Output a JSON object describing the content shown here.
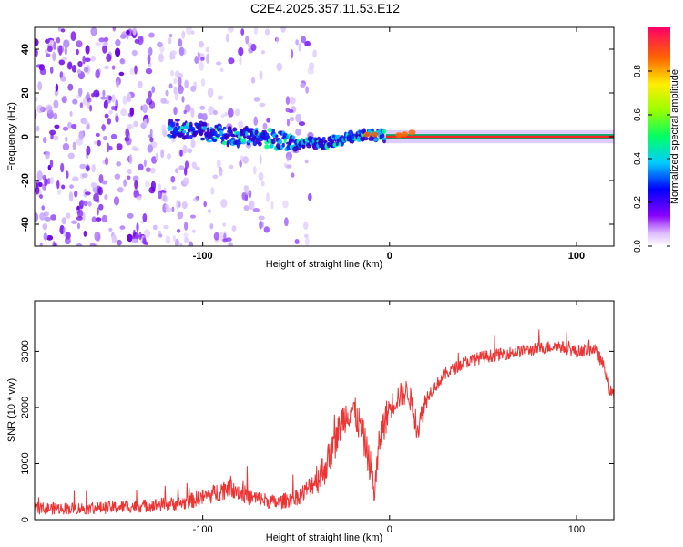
{
  "figure": {
    "title": "C2E4.2025.357.11.53.E12"
  },
  "chart_data": [
    {
      "type": "heatmap",
      "title": "C2E4.2025.357.11.53.E12",
      "xlabel": "Height of straight line (km)",
      "ylabel": "Frequency (Hz)",
      "xlim": [
        -190,
        120
      ],
      "ylim": [
        -50,
        50
      ],
      "xticks": [
        -100,
        0,
        100
      ],
      "yticks": [
        -40,
        -20,
        0,
        20,
        40
      ],
      "x_tick_labels": [
        "-100",
        "0",
        "100"
      ],
      "y_tick_labels": [
        "-40",
        "-20",
        "0",
        "20",
        "40"
      ],
      "ridge": {
        "x": [
          -115,
          -100,
          -85,
          -70,
          -50,
          -35,
          -20,
          -10,
          0,
          10,
          20,
          40,
          80,
          120
        ],
        "y": [
          4,
          2,
          0,
          0,
          -3,
          -3,
          0,
          1,
          0,
          1,
          0,
          0,
          0,
          0
        ]
      },
      "colorbar": {
        "label": "Normalized spectral amplitude",
        "range": [
          0.0,
          1.0
        ],
        "ticks": [
          0.0,
          0.2,
          0.4,
          0.6,
          0.8
        ],
        "tick_labels": [
          "0.0",
          "0.2",
          "0.4",
          "0.6",
          "0.8"
        ]
      }
    },
    {
      "type": "line",
      "xlabel": "Height of straight line (km)",
      "ylabel": "SNR (10 * v/v)",
      "xlim": [
        -190,
        120
      ],
      "ylim": [
        0,
        3900
      ],
      "xticks": [
        -100,
        0,
        100
      ],
      "yticks": [
        0,
        1000,
        2000,
        3000
      ],
      "x_tick_labels": [
        "-100",
        "0",
        "100"
      ],
      "y_tick_labels": [
        "0",
        "1000",
        "2000",
        "3000"
      ],
      "series": [
        {
          "name": "SNR",
          "color": "#ee3333",
          "x": [
            -190,
            -160,
            -130,
            -110,
            -95,
            -85,
            -75,
            -60,
            -50,
            -45,
            -40,
            -35,
            -30,
            -25,
            -20,
            -15,
            -12,
            -10,
            -8,
            -5,
            -2,
            0,
            5,
            10,
            15,
            20,
            30,
            40,
            50,
            60,
            70,
            80,
            90,
            100,
            110,
            115,
            118,
            120
          ],
          "y": [
            200,
            200,
            250,
            300,
            450,
            600,
            400,
            300,
            400,
            500,
            700,
            900,
            1300,
            1800,
            2000,
            1600,
            1200,
            900,
            500,
            1500,
            1800,
            2000,
            2200,
            2300,
            1600,
            2200,
            2600,
            2800,
            2900,
            2950,
            3000,
            3050,
            3100,
            3000,
            3050,
            2700,
            2300,
            2200
          ]
        }
      ]
    }
  ],
  "colors": {
    "snr_line": "#ee3333",
    "heatmap_low": "#cc99ff",
    "heatmap_high": "#ff0000"
  }
}
